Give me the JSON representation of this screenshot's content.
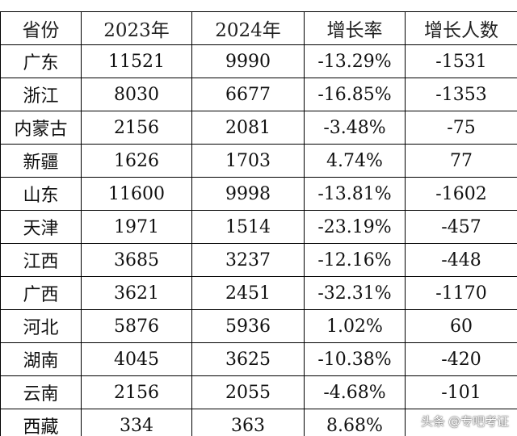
{
  "table": {
    "headers": [
      "省份",
      "2023年",
      "2024年",
      "增长率",
      "增长人数"
    ],
    "rows": [
      [
        "广东",
        "11521",
        "9990",
        "-13.29%",
        "-1531"
      ],
      [
        "浙江",
        "8030",
        "6677",
        "-16.85%",
        "-1353"
      ],
      [
        "内蒙古",
        "2156",
        "2081",
        "-3.48%",
        "-75"
      ],
      [
        "新疆",
        "1626",
        "1703",
        "4.74%",
        "77"
      ],
      [
        "山东",
        "11600",
        "9998",
        "-13.81%",
        "-1602"
      ],
      [
        "天津",
        "1971",
        "1514",
        "-23.19%",
        "-457"
      ],
      [
        "江西",
        "3685",
        "3237",
        "-12.16%",
        "-448"
      ],
      [
        "广西",
        "3621",
        "2451",
        "-32.31%",
        "-1170"
      ],
      [
        "河北",
        "5876",
        "5936",
        "1.02%",
        "60"
      ],
      [
        "湖南",
        "4045",
        "3625",
        "-10.38%",
        "-420"
      ],
      [
        "云南",
        "2156",
        "2055",
        "-4.68%",
        "-101"
      ],
      [
        "西藏",
        "334",
        "363",
        "8.68%",
        ""
      ]
    ]
  },
  "watermark": {
    "source": "头条",
    "account": "@专吧考证"
  }
}
